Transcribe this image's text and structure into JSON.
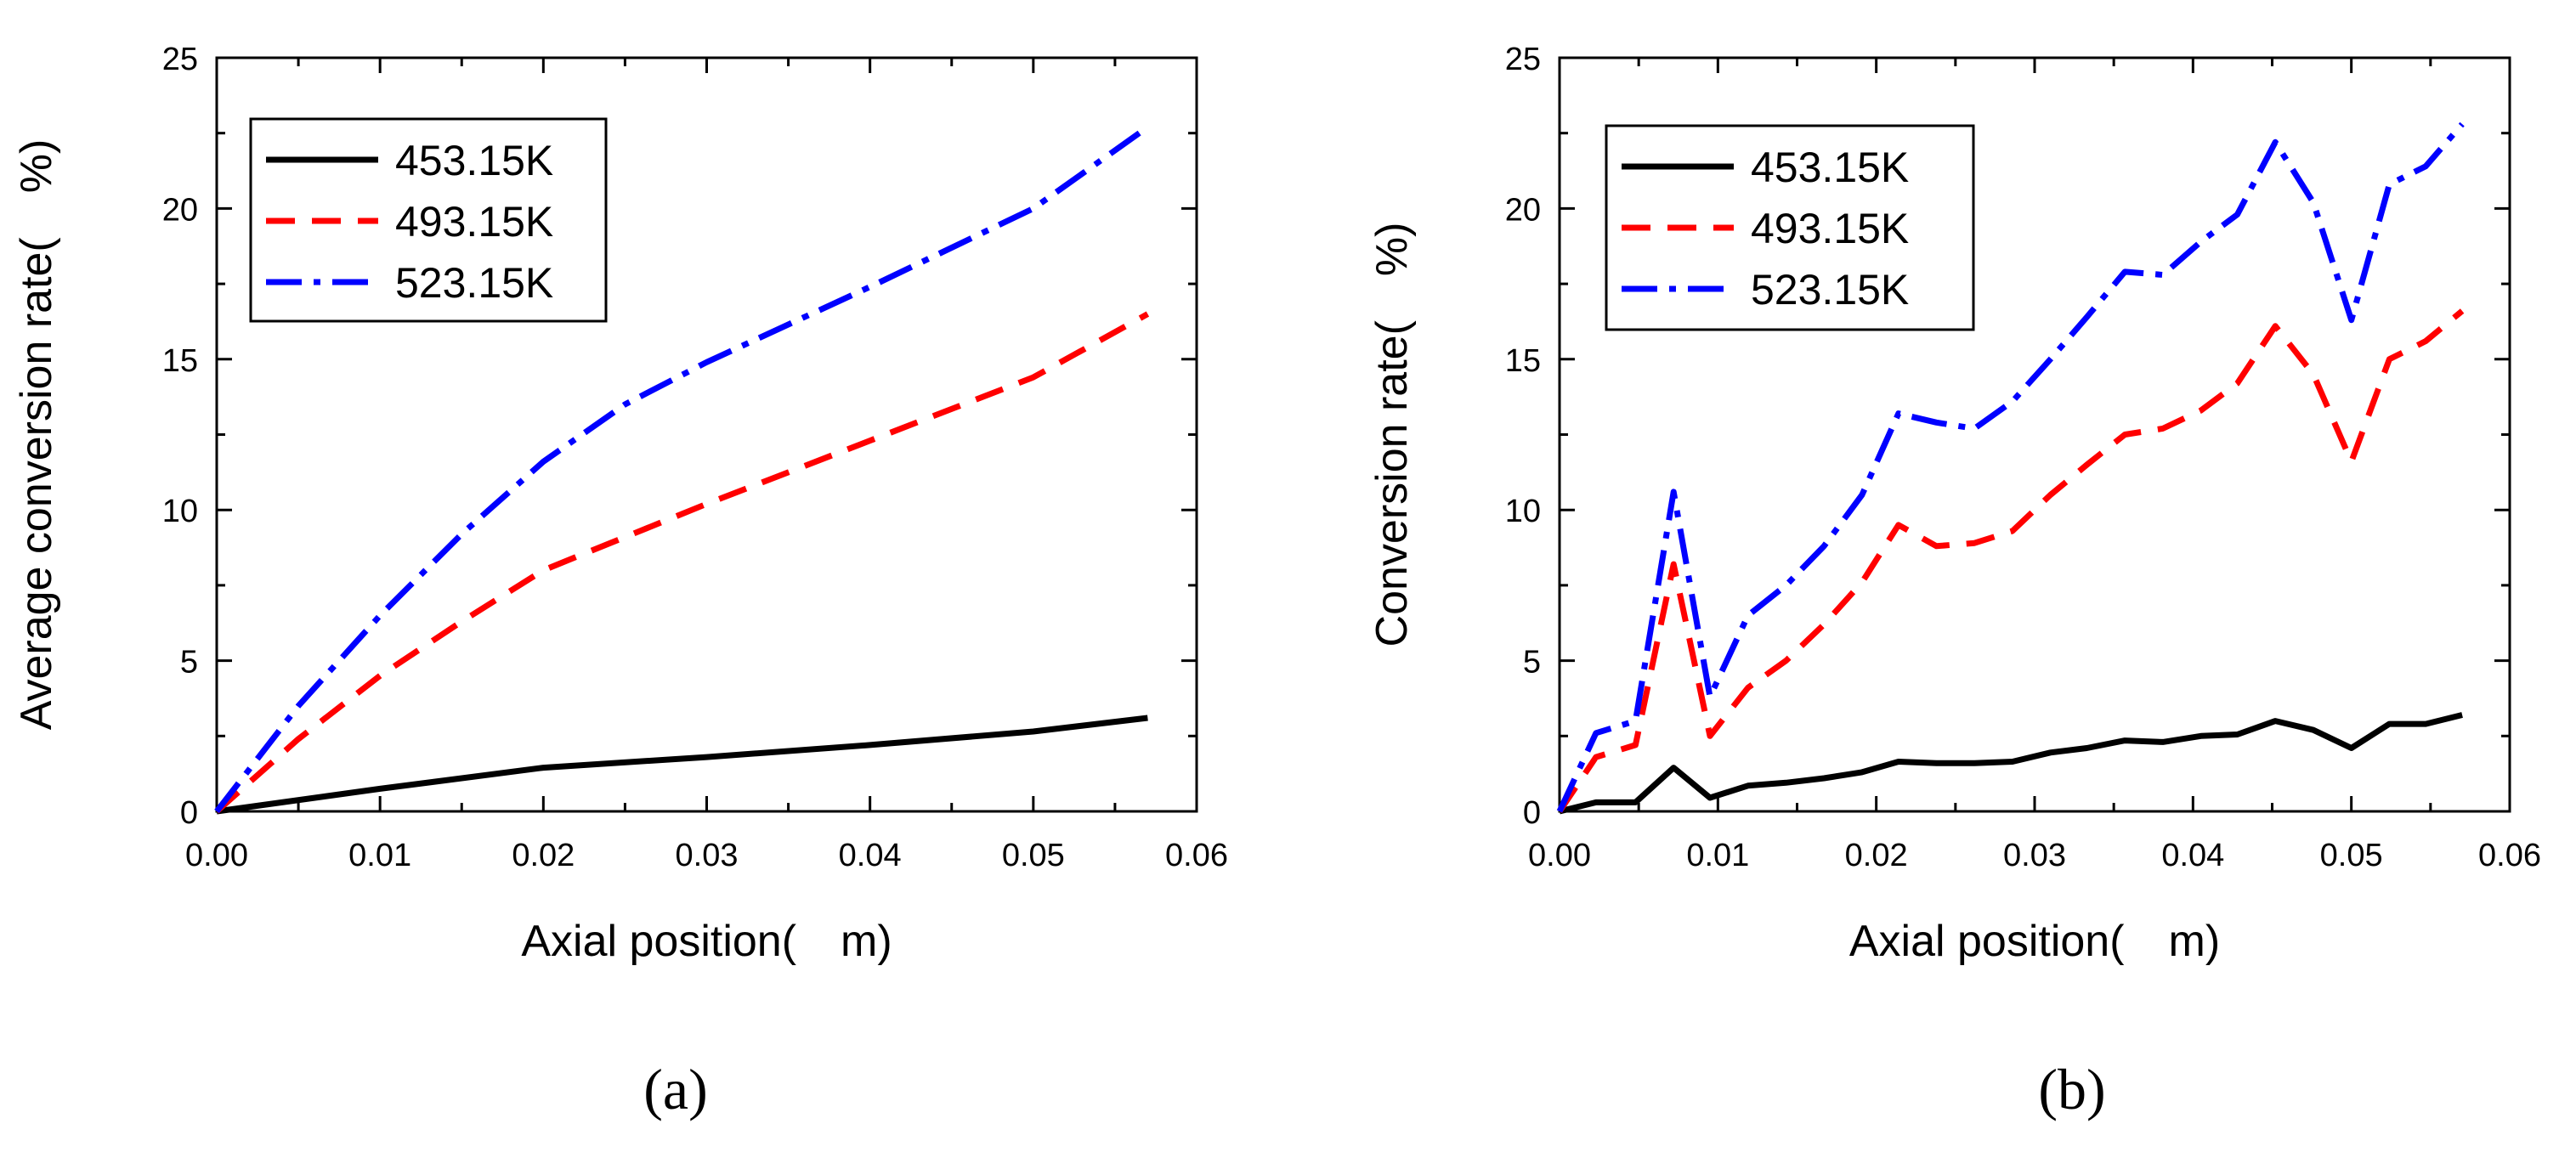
{
  "chart_data": [
    {
      "type": "line",
      "panel": "a",
      "caption": "(a)",
      "xlabel": "Axial position( m)",
      "ylabel": "Average conversion rate( %)",
      "xlim": [
        0,
        0.06
      ],
      "ylim": [
        0,
        25
      ],
      "xticks": [
        "0.00",
        "0.01",
        "0.02",
        "0.03",
        "0.04",
        "0.05",
        "0.06"
      ],
      "yticks": [
        "0",
        "5",
        "10",
        "15",
        "20",
        "25"
      ],
      "legend_position": "top-left",
      "series": [
        {
          "name": "453.15K",
          "color": "#000000",
          "dash": "solid",
          "x": [
            0,
            0.01,
            0.02,
            0.03,
            0.04,
            0.05,
            0.057
          ],
          "y": [
            0,
            0.75,
            1.45,
            1.8,
            2.2,
            2.65,
            3.1
          ]
        },
        {
          "name": "493.15K",
          "color": "#ff0000",
          "dash": "dash",
          "x": [
            0,
            0.005,
            0.01,
            0.015,
            0.02,
            0.03,
            0.04,
            0.05,
            0.057
          ],
          "y": [
            0,
            2.4,
            4.5,
            6.3,
            8.0,
            10.2,
            12.3,
            14.4,
            16.5
          ]
        },
        {
          "name": "523.15K",
          "color": "#0000ff",
          "dash": "dashdot",
          "x": [
            0,
            0.005,
            0.01,
            0.015,
            0.02,
            0.025,
            0.03,
            0.04,
            0.05,
            0.057
          ],
          "y": [
            0,
            3.5,
            6.5,
            9.2,
            11.6,
            13.5,
            14.9,
            17.4,
            20.0,
            22.7
          ]
        }
      ]
    },
    {
      "type": "line",
      "panel": "b",
      "caption": "(b)",
      "xlabel": "Axial position( m)",
      "ylabel": "Conversion rate( %)",
      "xlim": [
        0,
        0.06
      ],
      "ylim": [
        0,
        25
      ],
      "xticks": [
        "0.00",
        "0.01",
        "0.02",
        "0.03",
        "0.04",
        "0.05",
        "0.06"
      ],
      "yticks": [
        "0",
        "5",
        "10",
        "15",
        "20",
        "25"
      ],
      "legend_position": "top-left",
      "series": [
        {
          "name": "453.15K",
          "color": "#000000",
          "dash": "solid",
          "x": [
            0,
            0.0023,
            0.0048,
            0.0072,
            0.0095,
            0.0119,
            0.0143,
            0.0167,
            0.0191,
            0.0214,
            0.0238,
            0.0262,
            0.0286,
            0.031,
            0.0333,
            0.0357,
            0.0381,
            0.0405,
            0.0428,
            0.0452,
            0.0476,
            0.05,
            0.0524,
            0.0547,
            0.057
          ],
          "y": [
            0,
            0.3,
            0.3,
            1.45,
            0.45,
            0.85,
            0.95,
            1.1,
            1.3,
            1.65,
            1.6,
            1.6,
            1.65,
            1.95,
            2.1,
            2.35,
            2.3,
            2.5,
            2.55,
            3.0,
            2.7,
            2.1,
            2.9,
            2.9,
            3.2
          ]
        },
        {
          "name": "493.15K",
          "color": "#ff0000",
          "dash": "dash",
          "x": [
            0,
            0.0023,
            0.0048,
            0.0072,
            0.0095,
            0.0119,
            0.0143,
            0.0167,
            0.0191,
            0.0214,
            0.0238,
            0.0262,
            0.0286,
            0.031,
            0.0333,
            0.0357,
            0.0381,
            0.0405,
            0.0428,
            0.0452,
            0.0476,
            0.05,
            0.0524,
            0.0547,
            0.057
          ],
          "y": [
            0,
            1.8,
            2.2,
            8.2,
            2.5,
            4.1,
            5.0,
            6.2,
            7.6,
            9.5,
            8.8,
            8.9,
            9.3,
            10.5,
            11.5,
            12.5,
            12.7,
            13.3,
            14.2,
            16.1,
            14.5,
            11.6,
            15.0,
            15.6,
            16.6
          ]
        },
        {
          "name": "523.15K",
          "color": "#0000ff",
          "dash": "dashdot",
          "x": [
            0,
            0.0023,
            0.0048,
            0.0072,
            0.0095,
            0.0119,
            0.0143,
            0.0167,
            0.0191,
            0.0214,
            0.0238,
            0.0262,
            0.0286,
            0.031,
            0.0333,
            0.0357,
            0.0381,
            0.0405,
            0.0428,
            0.0452,
            0.0476,
            0.05,
            0.0524,
            0.0547,
            0.057
          ],
          "y": [
            0,
            2.6,
            3.0,
            10.6,
            3.8,
            6.5,
            7.5,
            8.8,
            10.5,
            13.2,
            12.9,
            12.7,
            13.6,
            15.0,
            16.4,
            17.9,
            17.8,
            18.9,
            19.8,
            22.2,
            20.2,
            16.3,
            20.8,
            21.4,
            22.8
          ]
        }
      ]
    }
  ]
}
